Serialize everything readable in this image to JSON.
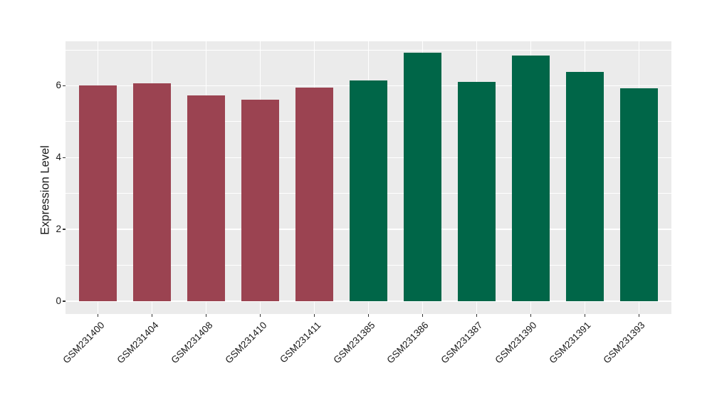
{
  "page": {
    "background_color": "#FFFFFF"
  },
  "chart_data": {
    "type": "bar",
    "title": "",
    "xlabel": "",
    "ylabel": "Expression Level",
    "categories": [
      "GSM231400",
      "GSM231404",
      "GSM231408",
      "GSM231410",
      "GSM231411",
      "GSM231385",
      "GSM231386",
      "GSM231387",
      "GSM231390",
      "GSM231391",
      "GSM231393"
    ],
    "values": [
      6.0,
      6.07,
      5.74,
      5.61,
      5.96,
      6.14,
      6.92,
      6.11,
      6.85,
      6.39,
      5.94
    ],
    "bar_colors": [
      "#9B4351",
      "#9B4351",
      "#9B4351",
      "#9B4351",
      "#9B4351",
      "#006648",
      "#006648",
      "#006648",
      "#006648",
      "#006648",
      "#006648"
    ],
    "yticks": [
      0,
      2,
      4,
      6
    ],
    "yticks_minor": [
      1,
      3,
      5,
      7
    ],
    "ylim": [
      -0.36,
      7.24
    ],
    "x_tick_rotation_deg": -45,
    "legend": "none",
    "grid": {
      "major": true,
      "minor": true
    },
    "style": {
      "panel_bg": "#EBEBEB",
      "grid_color": "#FFFFFF",
      "axis_text_color": "#1A1A1A",
      "tick_mark_color": "#333333"
    }
  }
}
